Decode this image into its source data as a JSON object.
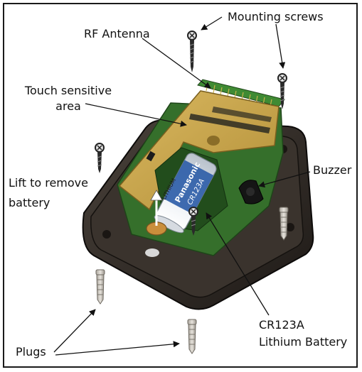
{
  "labels": {
    "rf_antenna": "RF Antenna",
    "mounting_screws": "Mounting screws",
    "touch_line1": "Touch sensitive",
    "touch_line2": "area",
    "buzzer": "Buzzer",
    "lift_line1": "Lift to remove",
    "lift_line2": "battery",
    "plugs": "Plugs",
    "battery_line1": "CR123A",
    "battery_line2": "Lithium Battery"
  },
  "battery_print": {
    "brand": "Panasonic",
    "model": "CR123A",
    "type": "LITHIUM"
  },
  "colors": {
    "housing": "#2b2622",
    "pcb": "#3d7a32",
    "touch_pad": "#c9a64a",
    "battery": "#e9eef4",
    "battery_band": "#2f5ea8",
    "screw": "#2a2a2a",
    "plug": "#c8c4bc"
  }
}
